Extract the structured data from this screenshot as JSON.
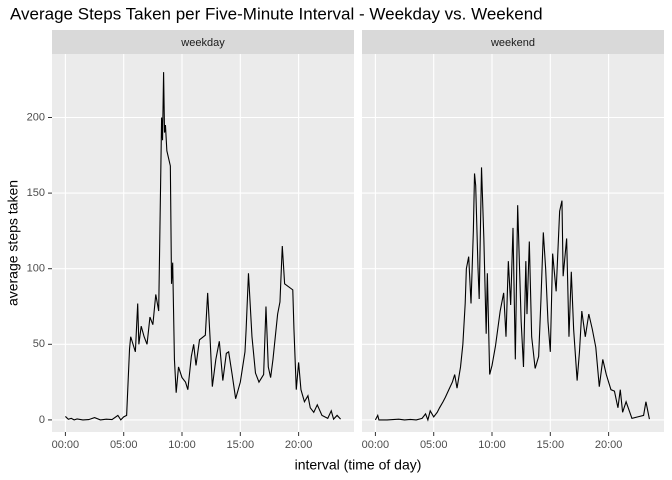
{
  "title": "Average Steps Taken per Five-Minute Interval - Weekday vs. Weekend",
  "x_label": "interval (time of day)",
  "y_label": "average steps taken",
  "chart_data": [
    {
      "type": "line",
      "panel_title": "weekday",
      "color": "#000000",
      "grid": true,
      "xlim": [
        -1.15,
        24.75
      ],
      "ylim": [
        -8,
        242
      ],
      "xticks": [
        {
          "value": 0,
          "label": "00:00"
        },
        {
          "value": 5,
          "label": "05:00"
        },
        {
          "value": 10,
          "label": "10:00"
        },
        {
          "value": 15,
          "label": "15:00"
        },
        {
          "value": 20,
          "label": "20:00"
        }
      ],
      "yticks": [
        0,
        50,
        100,
        150,
        200
      ],
      "x": [
        0,
        0.25,
        0.5,
        0.75,
        1,
        1.5,
        2,
        2.5,
        3,
        3.5,
        4,
        4.5,
        4.75,
        5,
        5.25,
        5.5,
        5.6,
        6,
        6.2,
        6.3,
        6.5,
        6.75,
        7,
        7.25,
        7.5,
        7.75,
        8,
        8.25,
        8.33,
        8.42,
        8.5,
        8.58,
        8.7,
        9,
        9.1,
        9.2,
        9.35,
        9.5,
        9.7,
        10,
        10.3,
        10.5,
        10.8,
        11,
        11.2,
        11.5,
        12,
        12.2,
        12.4,
        12.6,
        12.9,
        13.2,
        13.5,
        13.8,
        14,
        14.3,
        14.6,
        15,
        15.4,
        15.5,
        15.7,
        16,
        16.3,
        16.6,
        17,
        17.2,
        17.4,
        17.6,
        17.8,
        18.2,
        18.4,
        18.6,
        18.8,
        19.5,
        19.6,
        19.8,
        20,
        20.2,
        20.5,
        20.8,
        21,
        21.3,
        21.6,
        22,
        22.5,
        22.8,
        23,
        23.3,
        23.6
      ],
      "values": [
        2.3,
        0.4,
        1,
        0,
        0.6,
        0,
        0.2,
        1.5,
        0,
        0.5,
        0.2,
        3,
        0,
        2,
        3,
        47,
        55,
        45,
        77,
        50,
        62,
        55,
        50,
        68,
        63,
        83,
        72,
        200,
        185,
        230,
        190,
        195,
        178,
        168,
        90,
        104,
        40,
        18,
        35,
        28,
        25,
        20,
        42,
        50,
        36,
        53,
        56,
        84,
        55,
        22,
        40,
        52,
        26,
        44,
        45,
        30,
        14,
        25,
        45,
        60,
        97,
        55,
        31,
        25,
        30,
        75,
        35,
        28,
        40,
        70,
        78,
        115,
        90,
        86,
        60,
        20,
        38,
        20,
        12,
        16,
        8,
        5,
        10,
        3,
        1,
        6,
        0.5,
        3,
        0.5
      ]
    },
    {
      "type": "line",
      "panel_title": "weekend",
      "color": "#000000",
      "grid": true,
      "xlim": [
        -1.15,
        24.75
      ],
      "ylim": [
        -8,
        242
      ],
      "xticks": [
        {
          "value": 0,
          "label": "00:00"
        },
        {
          "value": 5,
          "label": "05:00"
        },
        {
          "value": 10,
          "label": "10:00"
        },
        {
          "value": 15,
          "label": "15:00"
        },
        {
          "value": 20,
          "label": "20:00"
        }
      ],
      "yticks": [
        0,
        50,
        100,
        150,
        200
      ],
      "x": [
        0,
        0.2,
        0.3,
        1,
        2,
        2.5,
        3,
        3.5,
        4,
        4.3,
        4.5,
        4.7,
        5,
        5.3,
        5.5,
        5.8,
        6,
        6.3,
        6.6,
        6.8,
        7,
        7.3,
        7.5,
        7.7,
        7.8,
        8,
        8.2,
        8.4,
        8.5,
        8.6,
        8.8,
        8.9,
        9.1,
        9.3,
        9.5,
        9.6,
        9.8,
        10,
        10.3,
        10.7,
        11,
        11.2,
        11.4,
        11.6,
        11.8,
        12,
        12.2,
        12.5,
        12.7,
        12.9,
        13,
        13.2,
        13.4,
        13.7,
        14,
        14.2,
        14.4,
        14.6,
        14.8,
        15,
        15.2,
        15.5,
        15.8,
        16,
        16.1,
        16.4,
        16.6,
        16.8,
        17,
        17.3,
        17.5,
        17.7,
        18,
        18.3,
        18.6,
        18.9,
        19.2,
        19.5,
        19.8,
        20.2,
        20.5,
        20.8,
        21,
        21.2,
        21.5,
        22,
        22.5,
        23,
        23.2,
        23.5
      ],
      "values": [
        0,
        3,
        0,
        0,
        0.5,
        0,
        0.3,
        0,
        1,
        4,
        0,
        6,
        2,
        5,
        8,
        12,
        15,
        20,
        25,
        30,
        21,
        35,
        50,
        77,
        100,
        108,
        77,
        125,
        163,
        155,
        100,
        80,
        167,
        120,
        57,
        97,
        30,
        36,
        49,
        72,
        84,
        55,
        105,
        76,
        127,
        40,
        142,
        65,
        35,
        105,
        70,
        118,
        55,
        34,
        42,
        80,
        124,
        100,
        65,
        45,
        110,
        85,
        138,
        145,
        95,
        120,
        55,
        98,
        60,
        26,
        45,
        72,
        55,
        70,
        60,
        48,
        22,
        40,
        30,
        20,
        19,
        8,
        20,
        5,
        12,
        1,
        2,
        3,
        12,
        0.5
      ]
    }
  ]
}
